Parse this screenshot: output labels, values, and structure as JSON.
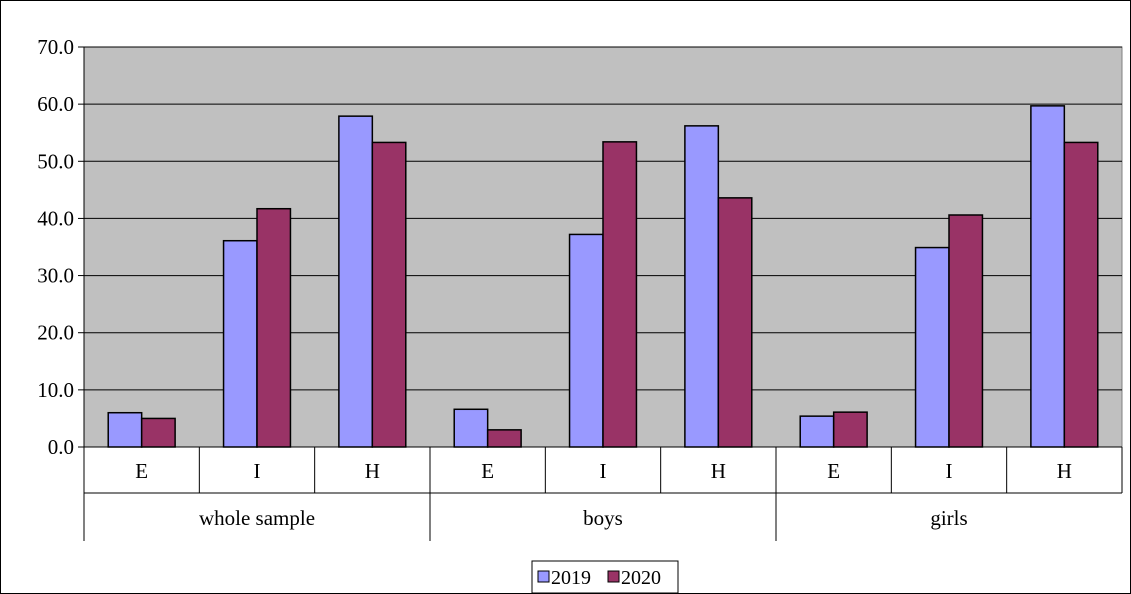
{
  "chart_data": {
    "type": "bar",
    "groups": [
      "whole sample",
      "boys",
      "girls"
    ],
    "categories": [
      "E",
      "I",
      "H",
      "E",
      "I",
      "H",
      "E",
      "I",
      "H"
    ],
    "series": [
      {
        "name": "2019",
        "color": "#9999FF",
        "values": [
          6.0,
          36.1,
          57.9,
          6.6,
          37.2,
          56.2,
          5.4,
          34.9,
          59.7
        ]
      },
      {
        "name": "2020",
        "color": "#993366",
        "values": [
          5.0,
          41.7,
          53.3,
          3.0,
          53.4,
          43.6,
          6.1,
          40.6,
          53.3
        ]
      }
    ],
    "yticks": [
      "0.0",
      "10.0",
      "20.0",
      "30.0",
      "40.0",
      "50.0",
      "60.0",
      "70.0"
    ],
    "ylim": [
      0,
      70
    ],
    "grid": true,
    "plot_background": "#C0C0C0",
    "legend_position": "bottom-center"
  }
}
